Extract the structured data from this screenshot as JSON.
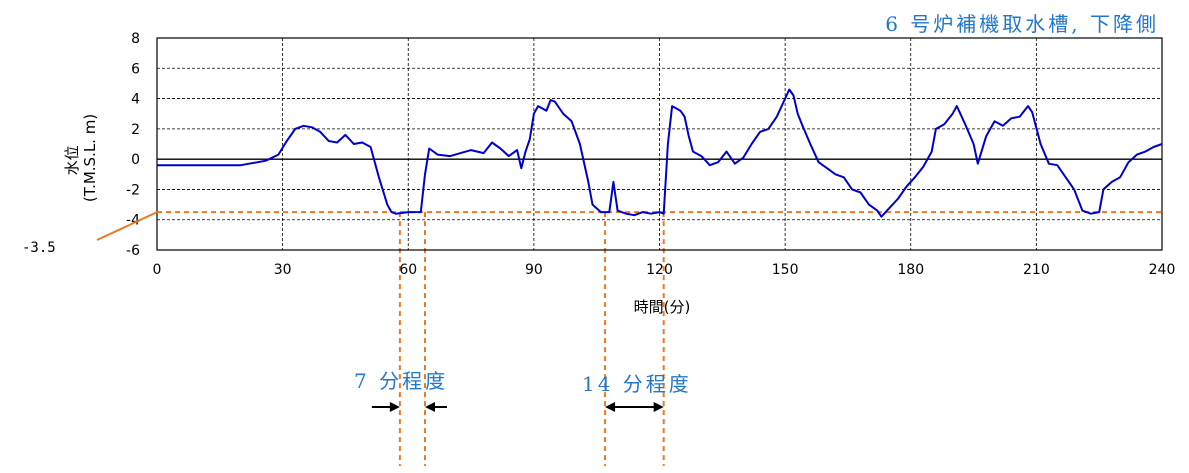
{
  "chart_data": {
    "type": "line",
    "title": "6 号炉補機取水槽, 下降側",
    "xlabel": "時間(分)",
    "ylabel_line1": "水位",
    "ylabel_line2": "(T.M.S.L. m)",
    "xlim": [
      0,
      240
    ],
    "ylim": [
      -6,
      8
    ],
    "x_ticks": [
      0,
      30,
      60,
      90,
      120,
      150,
      180,
      210,
      240
    ],
    "y_ticks": [
      8,
      6,
      4,
      2,
      0,
      -2,
      -4,
      -6
    ],
    "grid": true,
    "series": [
      {
        "color": "#0000cc",
        "x": [
          0,
          10,
          20,
          26,
          29,
          31,
          33,
          35,
          37,
          39,
          41,
          43,
          45,
          47,
          49,
          51,
          53,
          55,
          56,
          57,
          60,
          62,
          63,
          64,
          65,
          67,
          70,
          75,
          78,
          80,
          82,
          84,
          86,
          87,
          88,
          89,
          90,
          91,
          93,
          94,
          95,
          97,
          99,
          101,
          103,
          104,
          106,
          108,
          109,
          110,
          112,
          114,
          116,
          118,
          120,
          121,
          122,
          123,
          125,
          126,
          127,
          128,
          130,
          132,
          134,
          136,
          138,
          140,
          142,
          144,
          146,
          148,
          150,
          151,
          152,
          153,
          154,
          156,
          158,
          160,
          162,
          164,
          166,
          168,
          170,
          172,
          173,
          175,
          177,
          179,
          181,
          183,
          185,
          186,
          188,
          190,
          191,
          193,
          195,
          196,
          198,
          200,
          202,
          204,
          206,
          208,
          209,
          211,
          213,
          215,
          217,
          219,
          221,
          223,
          225,
          226,
          228,
          230,
          232,
          234,
          236,
          238,
          240
        ],
        "y": [
          -0.4,
          -0.4,
          -0.4,
          -0.1,
          0.3,
          1.2,
          2.0,
          2.2,
          2.1,
          1.8,
          1.2,
          1.1,
          1.6,
          1.0,
          1.1,
          0.8,
          -1.2,
          -3.0,
          -3.5,
          -3.6,
          -3.5,
          -3.5,
          -3.5,
          -1.0,
          0.7,
          0.3,
          0.2,
          0.6,
          0.4,
          1.1,
          0.7,
          0.2,
          0.6,
          -0.6,
          0.5,
          1.3,
          3.0,
          3.5,
          3.2,
          3.9,
          3.8,
          3.0,
          2.5,
          1.0,
          -1.5,
          -3.0,
          -3.5,
          -3.5,
          -1.5,
          -3.4,
          -3.6,
          -3.7,
          -3.5,
          -3.6,
          -3.5,
          -3.6,
          1.0,
          3.5,
          3.2,
          2.8,
          1.5,
          0.5,
          0.2,
          -0.4,
          -0.2,
          0.5,
          -0.3,
          0.1,
          1.0,
          1.8,
          2.0,
          2.8,
          4.0,
          4.6,
          4.2,
          3.0,
          2.3,
          1.0,
          -0.2,
          -0.6,
          -1.0,
          -1.2,
          -2.0,
          -2.2,
          -3.0,
          -3.4,
          -3.8,
          -3.2,
          -2.6,
          -1.8,
          -1.2,
          -0.5,
          0.5,
          2.0,
          2.3,
          3.0,
          3.5,
          2.3,
          1.0,
          -0.3,
          1.5,
          2.5,
          2.2,
          2.7,
          2.8,
          3.5,
          3.1,
          1.0,
          -0.3,
          -0.4,
          -1.2,
          -2.0,
          -3.4,
          -3.6,
          -3.5,
          -2.0,
          -1.5,
          -1.2,
          -0.2,
          0.3,
          0.5,
          0.8,
          1.0
        ]
      }
    ],
    "reference_line": {
      "y": -3.5,
      "label": "-3.5",
      "color": "#ee7722"
    },
    "vertical_markers": [
      58,
      64,
      107,
      121
    ],
    "annotations": [
      {
        "text": "7 分程度",
        "color": "#2277cc"
      },
      {
        "text": "14 分程度",
        "color": "#2277cc"
      }
    ]
  },
  "colors": {
    "series": "#0000cc",
    "reference": "#ee7722",
    "annotation_text": "#2277cc",
    "grid": "#000000"
  }
}
